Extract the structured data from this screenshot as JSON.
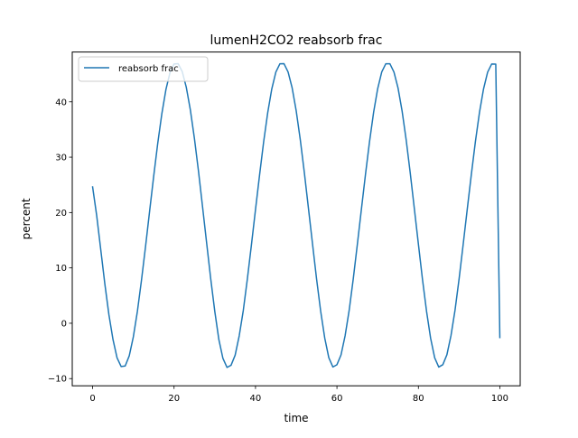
{
  "chart_data": {
    "type": "line",
    "title": "lumenH2CO2 reabsorb frac",
    "xlabel": "time",
    "ylabel": "percent",
    "xlim": [
      -5,
      105
    ],
    "ylim": [
      -11.3,
      49.0
    ],
    "xticks": [
      0,
      20,
      40,
      60,
      80,
      100
    ],
    "yticks": [
      -10,
      0,
      10,
      20,
      30,
      40
    ],
    "xtick_labels": [
      "0",
      "20",
      "40",
      "60",
      "80",
      "100"
    ],
    "ytick_labels": [
      "−10",
      "0",
      "10",
      "20",
      "30",
      "40"
    ],
    "grid": false,
    "legend": {
      "location": "upper left",
      "entries": [
        "reabsorb frac"
      ]
    },
    "series": [
      {
        "name": "reabsorb frac",
        "color": "#1f77b4",
        "x": [
          0,
          1,
          2,
          3,
          4,
          5,
          6,
          7,
          8,
          9,
          10,
          11,
          12,
          13,
          14,
          15,
          16,
          17,
          18,
          19,
          20,
          21,
          22,
          23,
          24,
          25,
          26,
          27,
          28,
          29,
          30,
          31,
          32,
          33,
          34,
          35,
          36,
          37,
          38,
          39,
          40,
          41,
          42,
          43,
          44,
          45,
          46,
          47,
          48,
          49,
          50,
          51,
          52,
          53,
          54,
          55,
          56,
          57,
          58,
          59,
          60,
          61,
          62,
          63,
          64,
          65,
          66,
          67,
          68,
          69,
          70,
          71,
          72,
          73,
          74,
          75,
          76,
          77,
          78,
          79,
          80,
          81,
          82,
          83,
          84,
          85,
          86,
          87,
          88,
          89,
          90,
          91,
          92,
          93,
          94,
          95,
          96,
          97,
          98,
          99,
          100
        ],
        "y": [
          24.63,
          19.47,
          13.3,
          7.13,
          1.56,
          -2.92,
          -6.24,
          -7.82,
          -7.72,
          -5.87,
          -2.46,
          2.18,
          7.77,
          13.87,
          20.26,
          26.56,
          32.55,
          37.85,
          42.21,
          45.28,
          46.84,
          46.9,
          45.47,
          42.65,
          38.55,
          33.4,
          27.47,
          21.03,
          14.5,
          8.05,
          2.15,
          -2.94,
          -6.35,
          -7.98,
          -7.59,
          -5.77,
          -2.28,
          2.3,
          7.99,
          14.16,
          20.54,
          26.79,
          32.77,
          38.05,
          42.34,
          45.37,
          46.88,
          46.89,
          45.39,
          42.52,
          38.35,
          33.14,
          27.17,
          20.77,
          14.34,
          7.98,
          2.2,
          -2.66,
          -6.22,
          -7.9,
          -7.49,
          -5.72,
          -2.27,
          2.33,
          7.98,
          14.19,
          20.57,
          26.84,
          32.8,
          38.08,
          42.36,
          45.39,
          46.88,
          46.88,
          45.38,
          42.5,
          38.33,
          33.12,
          27.15,
          20.74,
          14.31,
          7.95,
          2.18,
          -2.7,
          -6.24,
          -7.91,
          -7.48,
          -5.69,
          -2.23,
          2.38,
          8.05,
          14.26,
          20.61,
          26.87,
          32.82,
          38.08,
          42.34,
          45.36,
          46.84,
          46.82,
          -2.58
        ]
      }
    ]
  }
}
